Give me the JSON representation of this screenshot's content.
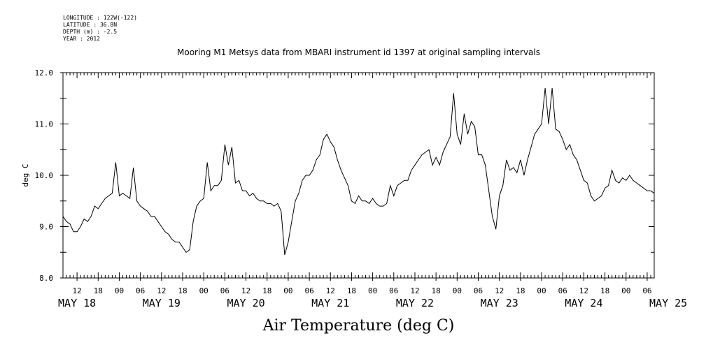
{
  "metadata": {
    "longitude": "LONGITUDE : 122W(-122)",
    "latitude": "LATITUDE : 36.8N",
    "depth": "DEPTH (m) : -2.5",
    "year": "YEAR : 2012"
  },
  "chart_data": {
    "type": "line",
    "title": "Mooring M1 Metsys data from MBARI instrument id 1397 at original sampling intervals",
    "xlabel": "Air Temperature (deg C)",
    "ylabel": "deg C",
    "ylim": [
      8.0,
      12.0
    ],
    "yticks": [
      "8.0",
      "9.0",
      "10.0",
      "11.0",
      "12.0"
    ],
    "xlim_hours": [
      8.0,
      176.0
    ],
    "x_tick_labels": [
      "12",
      "18",
      "00",
      "06",
      "12",
      "18",
      "00",
      "06",
      "12",
      "18",
      "00",
      "06",
      "12",
      "18",
      "00",
      "06",
      "12",
      "18",
      "00",
      "06",
      "12",
      "18",
      "00",
      "06",
      "12",
      "18",
      "00",
      "06"
    ],
    "x_day_labels": [
      "MAY 18",
      "MAY 19",
      "MAY 20",
      "MAY 21",
      "MAY 22",
      "MAY 23",
      "MAY 24",
      "MAY 25"
    ],
    "grid": false,
    "series": [
      {
        "name": "",
        "color": "#000000",
        "x_hours": [
          8,
          9,
          10,
          11,
          12,
          13,
          14,
          15,
          16,
          17,
          18,
          19,
          20,
          21,
          22,
          23,
          24,
          25,
          26,
          27,
          28,
          29,
          30,
          31,
          32,
          33,
          34,
          35,
          36,
          37,
          38,
          39,
          40,
          41,
          42,
          43,
          44,
          45,
          46,
          47,
          48,
          49,
          50,
          51,
          52,
          53,
          54,
          55,
          56,
          57,
          58,
          59,
          60,
          61,
          62,
          63,
          64,
          65,
          66,
          67,
          68,
          69,
          70,
          71,
          72,
          73,
          74,
          75,
          76,
          77,
          78,
          79,
          80,
          81,
          82,
          83,
          84,
          85,
          86,
          87,
          88,
          89,
          90,
          91,
          92,
          93,
          94,
          95,
          96,
          97,
          98,
          99,
          100,
          101,
          102,
          103,
          104,
          105,
          106,
          107,
          108,
          109,
          110,
          111,
          112,
          113,
          114,
          115,
          116,
          117,
          118,
          119,
          120,
          121,
          122,
          123,
          124,
          125,
          126,
          127,
          128,
          129,
          130,
          131,
          132,
          133,
          134,
          135,
          136,
          137,
          138,
          139,
          140,
          141,
          142,
          143,
          144,
          145,
          146,
          147,
          148,
          149,
          150,
          151,
          152,
          153,
          154,
          155,
          156,
          157,
          158,
          159,
          160,
          161,
          162,
          163,
          164,
          165,
          166,
          167,
          168,
          169,
          170,
          171,
          172,
          173,
          174,
          175,
          176
        ],
        "values": [
          9.2,
          9.1,
          9.05,
          8.9,
          8.9,
          9.0,
          9.15,
          9.1,
          9.2,
          9.4,
          9.35,
          9.45,
          9.55,
          9.6,
          9.65,
          10.25,
          9.6,
          9.65,
          9.6,
          9.55,
          10.15,
          9.5,
          9.4,
          9.35,
          9.3,
          9.2,
          9.2,
          9.1,
          9.0,
          8.9,
          8.85,
          8.75,
          8.7,
          8.7,
          8.6,
          8.5,
          8.55,
          9.1,
          9.4,
          9.5,
          9.55,
          10.25,
          9.7,
          9.8,
          9.8,
          9.9,
          10.6,
          10.2,
          10.55,
          9.85,
          9.9,
          9.7,
          9.7,
          9.6,
          9.65,
          9.55,
          9.5,
          9.5,
          9.45,
          9.45,
          9.4,
          9.45,
          9.3,
          8.45,
          8.7,
          9.1,
          9.5,
          9.65,
          9.9,
          10.0,
          10.0,
          10.1,
          10.3,
          10.4,
          10.7,
          10.8,
          10.65,
          10.55,
          10.3,
          10.1,
          9.95,
          9.8,
          9.5,
          9.45,
          9.6,
          9.5,
          9.5,
          9.45,
          9.55,
          9.45,
          9.4,
          9.4,
          9.45,
          9.8,
          9.6,
          9.8,
          9.85,
          9.9,
          9.9,
          10.1,
          10.2,
          10.3,
          10.4,
          10.45,
          10.5,
          10.2,
          10.35,
          10.2,
          10.45,
          10.6,
          10.75,
          11.6,
          10.8,
          10.6,
          11.2,
          10.8,
          11.05,
          10.95,
          10.4,
          10.4,
          10.2,
          9.7,
          9.2,
          8.95,
          9.6,
          9.8,
          10.3,
          10.1,
          10.15,
          10.05,
          10.3,
          10.0,
          10.3,
          10.55,
          10.8,
          10.9,
          11.0,
          11.7,
          11.0,
          11.7,
          10.9,
          10.85,
          10.7,
          10.5,
          10.6,
          10.4,
          10.3,
          10.1,
          9.9,
          9.85,
          9.6,
          9.5,
          9.55,
          9.6,
          9.75,
          9.8,
          10.1,
          9.9,
          9.85,
          9.95,
          9.9,
          10.0,
          9.9,
          9.85,
          9.8,
          9.75,
          9.7,
          9.7,
          9.65
        ]
      }
    ]
  }
}
